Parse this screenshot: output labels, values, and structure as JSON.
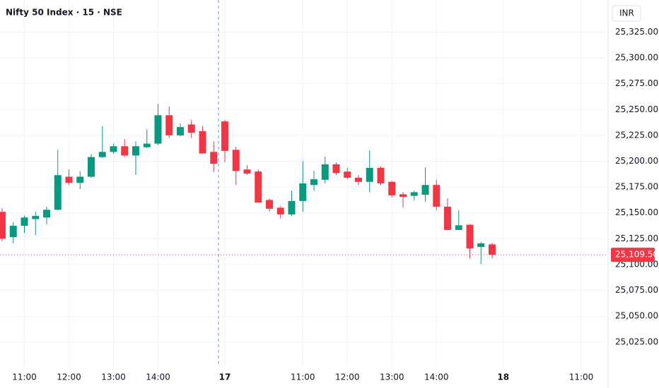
{
  "chart_data": {
    "type": "candlestick",
    "title": "Nifty 50 Index · 15 · NSE",
    "currency": "INR",
    "categories": [
      null,
      null,
      "11:00",
      null,
      null,
      null,
      "12:00",
      null,
      null,
      null,
      "13:00",
      null,
      null,
      null,
      "14:00",
      null,
      null,
      null,
      null,
      null,
      "17",
      null,
      null,
      null,
      null,
      null,
      null,
      "11:00",
      null,
      null,
      null,
      "12:00",
      null,
      null,
      null,
      "13:00",
      null,
      null,
      null,
      "14:00",
      null,
      null,
      null,
      null,
      null,
      "18",
      null,
      null,
      null,
      null,
      null,
      null,
      "11:00",
      null,
      null
    ],
    "open": [
      25151,
      25126.5,
      25137.5,
      25144,
      25145.5,
      25153,
      25185,
      25179,
      25185,
      25204,
      25209,
      25214.5,
      25205.5,
      25213.5,
      25217,
      25244.5,
      25225,
      25235.5,
      25229,
      25209,
      25238.5,
      25211,
      25192,
      25190,
      25162.5,
      25155,
      25148.5,
      25161.5,
      25177,
      25182,
      25197,
      25190,
      25184,
      25180,
      25193.5,
      25180,
      25168,
      25166.5,
      25167.5,
      25177,
      25156,
      25133.5,
      25138.5,
      25117,
      25119.5,
      null,
      null,
      null,
      null,
      null,
      null,
      null,
      null,
      null,
      null
    ],
    "high": [
      25154.5,
      25141,
      25147,
      25151,
      25156,
      25211,
      25192,
      25190.5,
      25207,
      25234,
      25217,
      25221.5,
      25219,
      25231,
      25255.5,
      25253,
      25236.5,
      25240,
      25234,
      25219,
      25240,
      25214,
      25196,
      25192,
      25164,
      25156.5,
      25171.5,
      25200,
      25190.5,
      25204.5,
      25199,
      25193.5,
      25186.5,
      25210.5,
      25195,
      25181,
      25170,
      25171.5,
      25194,
      25182,
      25164,
      25152.5,
      25139,
      25122,
      25121,
      null,
      null,
      null,
      null,
      null,
      null,
      null,
      null,
      null,
      null
    ],
    "low": [
      25122.5,
      25120.5,
      25130.5,
      25128.5,
      25139,
      25152.5,
      25177,
      25173,
      25184,
      25203,
      25207,
      25204,
      25186.5,
      25212.5,
      25215.5,
      25222.5,
      25224,
      25222.5,
      25207,
      25189.5,
      25199,
      25177,
      25186.5,
      25160,
      25151,
      25144.5,
      25147,
      25151,
      25171.5,
      25178.5,
      25186.5,
      25182.5,
      25177,
      25170,
      25177,
      25165,
      25155,
      25162,
      25160.5,
      25152.5,
      25133.5,
      25133.5,
      25106,
      25100.5,
      25106,
      null,
      null,
      null,
      null,
      null,
      null,
      null,
      null,
      null,
      null
    ],
    "close": [
      25125,
      25137.5,
      25145.5,
      25147,
      25153,
      25186.5,
      25179,
      25185,
      25204,
      25209,
      25214.5,
      25205.5,
      25214.5,
      25217,
      25244.5,
      25225,
      25233,
      25227.5,
      25207.5,
      25197.5,
      25210,
      25190.5,
      25188,
      25160,
      25154,
      25148.5,
      25161.5,
      25178.5,
      25182.5,
      25197,
      25188.5,
      25184,
      25180,
      25193.5,
      25178.5,
      25167,
      25165.5,
      25170,
      25177,
      25156,
      25133.5,
      25138,
      25115.5,
      25120.5,
      25109.5,
      null,
      null,
      null,
      null,
      null,
      null,
      null,
      null,
      null,
      null
    ],
    "up_color": "#089981",
    "down_color": "#f23645",
    "last_price": {
      "value": 25109.5,
      "label": "25,109.50"
    },
    "ylim": [
      25001,
      25356
    ],
    "yticks": [
      {
        "value": 25025,
        "label": "25,025.00"
      },
      {
        "value": 25050,
        "label": "25,050.00"
      },
      {
        "value": 25075,
        "label": "25,075.00"
      },
      {
        "value": 25100,
        "label": "25,100.00"
      },
      {
        "value": 25125,
        "label": "25,125.00"
      },
      {
        "value": 25150,
        "label": "25,150.00"
      },
      {
        "value": 25175,
        "label": "25,175.00"
      },
      {
        "value": 25200,
        "label": "25,200.00"
      },
      {
        "value": 25225,
        "label": "25,225.00"
      },
      {
        "value": 25250,
        "label": "25,250.00"
      },
      {
        "value": 25275,
        "label": "25,275.00"
      },
      {
        "value": 25300,
        "label": "25,300.00"
      },
      {
        "value": 25325,
        "label": "25,325.00"
      }
    ],
    "grid": true
  }
}
